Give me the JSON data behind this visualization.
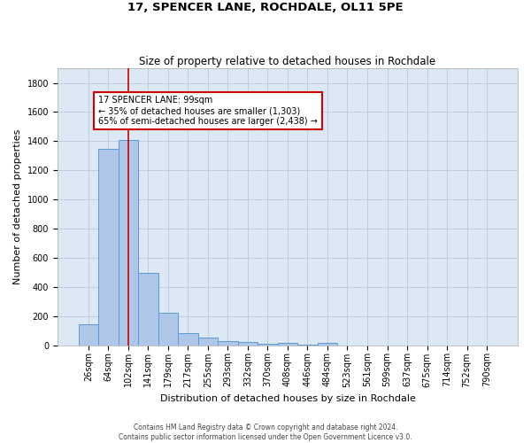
{
  "title": "17, SPENCER LANE, ROCHDALE, OL11 5PE",
  "subtitle": "Size of property relative to detached houses in Rochdale",
  "xlabel": "Distribution of detached houses by size in Rochdale",
  "ylabel": "Number of detached properties",
  "footer_line1": "Contains HM Land Registry data © Crown copyright and database right 2024.",
  "footer_line2": "Contains public sector information licensed under the Open Government Licence v3.0.",
  "categories": [
    "26sqm",
    "64sqm",
    "102sqm",
    "141sqm",
    "179sqm",
    "217sqm",
    "255sqm",
    "293sqm",
    "332sqm",
    "370sqm",
    "408sqm",
    "446sqm",
    "484sqm",
    "523sqm",
    "561sqm",
    "599sqm",
    "637sqm",
    "675sqm",
    "714sqm",
    "752sqm",
    "790sqm"
  ],
  "values": [
    145,
    1350,
    1410,
    495,
    225,
    80,
    50,
    30,
    20,
    8,
    15,
    5,
    18,
    0,
    0,
    0,
    0,
    0,
    0,
    0,
    0
  ],
  "bar_color": "#aec6e8",
  "bar_edge_color": "#5b9bd5",
  "background_color": "#dde8f5",
  "grid_color": "#b8c8dc",
  "vline_color": "#cc0000",
  "vline_x": 2.0,
  "annotation_text": "17 SPENCER LANE: 99sqm\n← 35% of detached houses are smaller (1,303)\n65% of semi-detached houses are larger (2,438) →",
  "ylim": [
    0,
    1900
  ],
  "yticks": [
    0,
    200,
    400,
    600,
    800,
    1000,
    1200,
    1400,
    1600,
    1800
  ],
  "title_fontsize": 9.5,
  "subtitle_fontsize": 8.5,
  "axis_label_fontsize": 8,
  "tick_fontsize": 7,
  "annotation_fontsize": 7,
  "footer_fontsize": 5.5
}
